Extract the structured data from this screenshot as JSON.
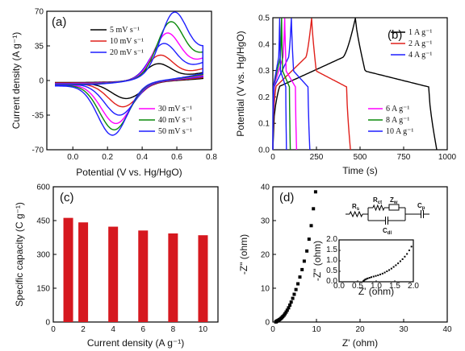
{
  "colors": {
    "black": "#000000",
    "red": "#e0201b",
    "blue": "#1f1fff",
    "magenta": "#ff00ff",
    "green": "#0a8a0a",
    "bar": "#d6181f"
  },
  "chart_data": [
    {
      "id": "a",
      "panel_label": "(a)",
      "type": "line",
      "xlabel": "Potential (V vs. Hg/HgO)",
      "ylabel": "Current density (A g⁻¹)",
      "xlim": [
        -0.15,
        0.8
      ],
      "ylim": [
        -70,
        70
      ],
      "xticks": [
        "0.0",
        "0.2",
        "0.4",
        "0.6",
        "0.8"
      ],
      "xtick_values": [
        0.0,
        0.2,
        0.4,
        0.6,
        0.8
      ],
      "yticks": [
        "70",
        "35",
        "0",
        "-35",
        "-70"
      ],
      "ytick_values": [
        70,
        35,
        0,
        -35,
        -70
      ],
      "legend_top": [
        "5 mV s⁻¹",
        "10 mV s⁻¹",
        "20 mV s⁻¹"
      ],
      "legend_bottom": [
        "30 mV s⁻¹",
        "40 mV s⁻¹",
        "50 mV s⁻¹"
      ],
      "series": [
        {
          "name": "5 mV s⁻¹",
          "color": "#000000",
          "start": -2.0,
          "end": 8,
          "anodic_peak": [
            0.49,
            17
          ],
          "cathodic_peak": [
            0.31,
            -16
          ],
          "cath_start": 2,
          "cath_end": -3
        },
        {
          "name": "10 mV s⁻¹",
          "color": "#e0201b",
          "start": -2.5,
          "end": 12,
          "anodic_peak": [
            0.5,
            25
          ],
          "cathodic_peak": [
            0.29,
            -24
          ],
          "cath_start": 3,
          "cath_end": -3.5
        },
        {
          "name": "20 mV s⁻¹",
          "color": "#1f1fff",
          "start": -3.0,
          "end": 18,
          "anodic_peak": [
            0.52,
            35
          ],
          "cathodic_peak": [
            0.27,
            -32
          ],
          "cath_start": 4,
          "cath_end": -4
        },
        {
          "name": "30 mV s⁻¹",
          "color": "#ff00ff",
          "start": -3.5,
          "end": 22,
          "anodic_peak": [
            0.54,
            44
          ],
          "cathodic_peak": [
            0.25,
            -40
          ],
          "cath_start": 5,
          "cath_end": -4.5
        },
        {
          "name": "40 mV s⁻¹",
          "color": "#0a8a0a",
          "start": -4.0,
          "end": 27,
          "anodic_peak": [
            0.56,
            53
          ],
          "cathodic_peak": [
            0.24,
            -46
          ],
          "cath_start": 6,
          "cath_end": -5
        },
        {
          "name": "50 mV s⁻¹",
          "color": "#1f1fff",
          "start": -4.5,
          "end": 31,
          "anodic_peak": [
            0.58,
            60
          ],
          "cathodic_peak": [
            0.23,
            -51
          ],
          "cath_start": 7,
          "cath_end": -5.5
        }
      ]
    },
    {
      "id": "b",
      "panel_label": "(b)",
      "type": "line",
      "xlabel": "Time (s)",
      "ylabel": "Potential (V vs. Hg/HgO)",
      "xlim": [
        0,
        1000
      ],
      "ylim": [
        0,
        0.5
      ],
      "xticks": [
        "0",
        "250",
        "500",
        "750",
        "1000"
      ],
      "xtick_values": [
        0,
        250,
        500,
        750,
        1000
      ],
      "yticks": [
        "0.0",
        "0.1",
        "0.2",
        "0.3",
        "0.4",
        "0.5"
      ],
      "ytick_values": [
        0,
        0.1,
        0.2,
        0.3,
        0.4,
        0.5
      ],
      "legend_top": [
        "1 A g⁻¹",
        "2 A g⁻¹",
        "4 A g⁻¹"
      ],
      "legend_bottom": [
        "6 A g⁻¹",
        "8 A g⁻¹",
        "10 A g⁻¹"
      ],
      "series": [
        {
          "name": "1 A g⁻¹",
          "color": "#000000",
          "charge_time": 473,
          "total_time": 940
        },
        {
          "name": "2 A g⁻¹",
          "color": "#e0201b",
          "charge_time": 222,
          "total_time": 445
        },
        {
          "name": "4 A g⁻¹",
          "color": "#1f1fff",
          "charge_time": 106,
          "total_time": 212
        },
        {
          "name": "6 A g⁻¹",
          "color": "#ff00ff",
          "charge_time": 68,
          "total_time": 136
        },
        {
          "name": "8 A g⁻¹",
          "color": "#0a8a0a",
          "charge_time": 50,
          "total_time": 100
        },
        {
          "name": "10 A g⁻¹",
          "color": "#1f1fff",
          "charge_time": 39,
          "total_time": 78
        }
      ]
    },
    {
      "id": "c",
      "panel_label": "(c)",
      "type": "bar",
      "xlabel": "Current density (A g⁻¹)",
      "ylabel": "Specific capacity (C g⁻¹)",
      "xlim": [
        0,
        11
      ],
      "ylim": [
        0,
        600
      ],
      "xticks": [
        "0",
        "2",
        "4",
        "6",
        "8",
        "10"
      ],
      "xtick_values": [
        0,
        2,
        4,
        6,
        8,
        10
      ],
      "yticks": [
        "0",
        "150",
        "300",
        "450",
        "600"
      ],
      "ytick_values": [
        0,
        150,
        300,
        450,
        600
      ],
      "x": [
        1,
        2,
        4,
        6,
        8,
        10
      ],
      "values": [
        462,
        442,
        423,
        406,
        393,
        385
      ],
      "bar_color": "#d6181f"
    },
    {
      "id": "d",
      "panel_label": "(d)",
      "type": "scatter",
      "xlabel": "Z' (ohm)",
      "ylabel": "-Z\" (ohm)",
      "xlim": [
        0,
        40
      ],
      "ylim": [
        0,
        40
      ],
      "xticks": [
        "0",
        "10",
        "20",
        "30",
        "40"
      ],
      "xtick_values": [
        0,
        10,
        20,
        30,
        40
      ],
      "yticks": [
        "0",
        "10",
        "20",
        "30",
        "40"
      ],
      "ytick_values": [
        0,
        10,
        20,
        30,
        40
      ],
      "points": [
        [
          0.68,
          0.02
        ],
        [
          0.72,
          0.08
        ],
        [
          0.78,
          0.14
        ],
        [
          0.86,
          0.2
        ],
        [
          0.95,
          0.28
        ],
        [
          1.05,
          0.35
        ],
        [
          1.18,
          0.45
        ],
        [
          1.32,
          0.55
        ],
        [
          1.5,
          0.7
        ],
        [
          1.7,
          0.88
        ],
        [
          1.9,
          1.1
        ],
        [
          2.1,
          1.35
        ],
        [
          2.3,
          1.65
        ],
        [
          2.55,
          2.0
        ],
        [
          2.8,
          2.45
        ],
        [
          3.05,
          2.95
        ],
        [
          3.3,
          3.5
        ],
        [
          3.6,
          4.2
        ],
        [
          3.9,
          5.0
        ],
        [
          4.2,
          5.9
        ],
        [
          4.55,
          7.0
        ],
        [
          4.9,
          8.2
        ],
        [
          5.3,
          9.6
        ],
        [
          5.75,
          11.3
        ],
        [
          6.2,
          13.3
        ],
        [
          6.7,
          15.5
        ],
        [
          7.2,
          18.0
        ],
        [
          7.8,
          21.0
        ],
        [
          8.3,
          24.5
        ],
        [
          8.8,
          28.5
        ],
        [
          9.3,
          33.5
        ],
        [
          9.8,
          38.5
        ]
      ],
      "inset": {
        "ylabel": "-Z\" (ohm)",
        "xlabel": "Z' (ohm)",
        "xlim": [
          0,
          2
        ],
        "ylim": [
          0,
          2
        ],
        "xticks": [
          "0.0",
          "0.5",
          "1.0",
          "1.5",
          "2.0"
        ],
        "xtick_values": [
          0,
          0.5,
          1.0,
          1.5,
          2.0
        ],
        "yticks": [
          "0.0",
          "0.5",
          "1.0",
          "1.5",
          "2.0"
        ],
        "ytick_values": [
          0,
          0.5,
          1.0,
          1.5,
          2.0
        ],
        "points": [
          [
            0.65,
            0.02
          ],
          [
            0.67,
            0.06
          ],
          [
            0.7,
            0.1
          ],
          [
            0.73,
            0.13
          ],
          [
            0.77,
            0.16
          ],
          [
            0.82,
            0.19
          ],
          [
            0.87,
            0.22
          ],
          [
            0.93,
            0.25
          ],
          [
            0.99,
            0.28
          ],
          [
            1.05,
            0.31
          ],
          [
            1.11,
            0.35
          ],
          [
            1.17,
            0.39
          ],
          [
            1.23,
            0.44
          ],
          [
            1.29,
            0.5
          ],
          [
            1.35,
            0.56
          ],
          [
            1.41,
            0.63
          ],
          [
            1.47,
            0.71
          ],
          [
            1.53,
            0.79
          ],
          [
            1.59,
            0.88
          ],
          [
            1.65,
            0.98
          ],
          [
            1.71,
            1.08
          ],
          [
            1.77,
            1.2
          ],
          [
            1.83,
            1.33
          ],
          [
            1.89,
            1.5
          ],
          [
            1.95,
            1.68
          ]
        ]
      },
      "circuit_labels": {
        "rs": "R",
        "rs_sub": "s",
        "rct": "R",
        "rct_sub": "ct",
        "zw": "Z",
        "zw_sub": "w",
        "cp": "C",
        "cp_sub": "p",
        "cdl": "C",
        "cdl_sub": "dl"
      }
    }
  ]
}
